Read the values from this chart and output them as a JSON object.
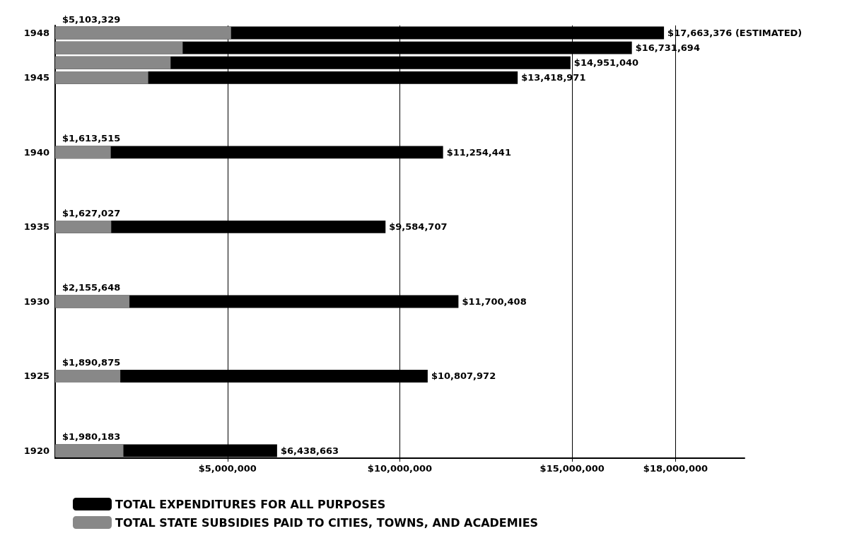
{
  "chart_data": {
    "type": "bar",
    "orientation": "horizontal",
    "categories": [
      "1948",
      null,
      null,
      "1945",
      null,
      null,
      null,
      null,
      "1940",
      null,
      null,
      null,
      null,
      "1935",
      null,
      null,
      null,
      null,
      "1930",
      null,
      null,
      null,
      null,
      "1925",
      null,
      null,
      null,
      null,
      "1920"
    ],
    "series": [
      {
        "name": "TOTAL EXPENDITURES FOR ALL PURPOSES",
        "color": "#000000",
        "values": [
          17663376,
          16731694,
          14951040,
          13418971,
          null,
          null,
          null,
          null,
          11254441,
          null,
          null,
          null,
          null,
          9584707,
          null,
          null,
          null,
          null,
          11700408,
          null,
          null,
          null,
          null,
          10807972,
          null,
          null,
          null,
          null,
          6438663
        ],
        "value_labels": [
          "$17,663,376 (ESTIMATED)",
          "$16,731,694",
          "$14,951,040",
          "$13,418,971",
          null,
          null,
          null,
          null,
          "$11,254,441",
          null,
          null,
          null,
          null,
          "$9,584,707",
          null,
          null,
          null,
          null,
          "$11,700,408",
          null,
          null,
          null,
          null,
          "$10,807,972",
          null,
          null,
          null,
          null,
          "$6,438,663"
        ]
      },
      {
        "name": "TOTAL STATE SUBSIDIES PAID TO CITIES, TOWNS, AND ACADEMIES",
        "color": "#888888",
        "values": [
          5103329,
          3700000,
          3350000,
          2700000,
          null,
          null,
          null,
          null,
          1613515,
          null,
          null,
          null,
          null,
          1627027,
          null,
          null,
          null,
          null,
          2155648,
          null,
          null,
          null,
          null,
          1890875,
          null,
          null,
          null,
          null,
          1980183
        ],
        "value_labels": [
          "$5,103,329",
          null,
          null,
          null,
          null,
          null,
          null,
          null,
          "$1,613,515",
          null,
          null,
          null,
          null,
          "$1,627,027",
          null,
          null,
          null,
          null,
          "$2,155,648",
          null,
          null,
          null,
          null,
          "$1,890,875",
          null,
          null,
          null,
          null,
          "$1,980,183"
        ]
      }
    ],
    "xlim": [
      0,
      20000000
    ],
    "xticks": [
      {
        "value": 5000000,
        "label": "$5,000,000"
      },
      {
        "value": 10000000,
        "label": "$10,000,000"
      },
      {
        "value": 15000000,
        "label": "$15,000,000"
      },
      {
        "value": 18000000,
        "label": "$18,000,000"
      }
    ],
    "grid": "x",
    "legend": "bottom"
  }
}
